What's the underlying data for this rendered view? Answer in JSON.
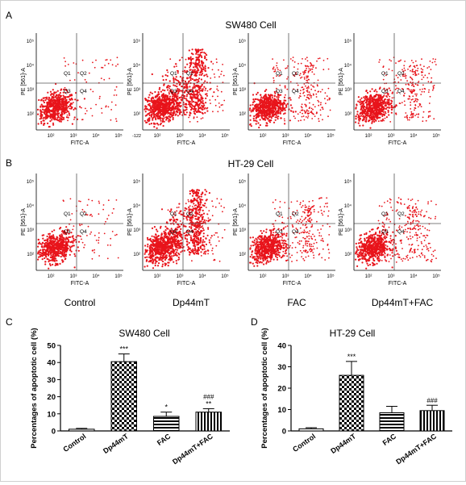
{
  "panels": {
    "A": {
      "letter": "A",
      "title": "SW480 Cell",
      "facs_style": [
        {
          "outlier": "low"
        },
        {
          "outlier": "high_q2"
        },
        {
          "outlier": "mid"
        },
        {
          "outlier": "mid"
        }
      ]
    },
    "B": {
      "letter": "B",
      "title": "HT-29 Cell",
      "facs_style": [
        {
          "outlier": "low"
        },
        {
          "outlier": "high_q2"
        },
        {
          "outlier": "mid"
        },
        {
          "outlier": "mid"
        }
      ]
    },
    "conditions": [
      "Control",
      "Dp44mT",
      "FAC",
      "Dp44mT+FAC"
    ],
    "facs_axes": {
      "x_label": "FITC-A",
      "y_label": "PE [561]-A",
      "quadrants": [
        "Q1",
        "Q2",
        "Q3",
        "Q4"
      ],
      "x_ticks": [
        "10²",
        "10³",
        "10⁴",
        "10⁵"
      ],
      "y_ticks": [
        "10²",
        "10³",
        "10⁴",
        "10⁵"
      ],
      "neg_tick": "-122"
    },
    "C": {
      "letter": "C",
      "title": "SW480 Cell"
    },
    "D": {
      "letter": "D",
      "title": "HT-29 Cell"
    },
    "colors": {
      "dots": "#e8141b",
      "axis": "#000000",
      "gate": "#555555"
    }
  },
  "chart_data": [
    {
      "type": "bar",
      "title": "SW480 Cell",
      "categories": [
        "Control",
        "Dp44mT",
        "FAC",
        "Dp44mT+FAC"
      ],
      "values": [
        1,
        40.5,
        8.5,
        11
      ],
      "errors": [
        0.5,
        4.5,
        2.5,
        2
      ],
      "annotations": [
        [
          "",
          ""
        ],
        [
          "***",
          ""
        ],
        [
          "*",
          ""
        ],
        [
          "**",
          "###"
        ]
      ],
      "ylabel": "Percentages of apoptotic cell (%)",
      "ylim": [
        0,
        50
      ],
      "yticks": [
        0,
        10,
        20,
        30,
        40,
        50
      ]
    },
    {
      "type": "bar",
      "title": "HT-29 Cell",
      "categories": [
        "Control",
        "Dp44mT",
        "FAC",
        "Dp44mT+FAC"
      ],
      "values": [
        1,
        26,
        8.5,
        9.5
      ],
      "errors": [
        0.5,
        6.5,
        3,
        2.5
      ],
      "annotations": [
        [
          "",
          ""
        ],
        [
          "***",
          ""
        ],
        [
          "",
          ""
        ],
        [
          "",
          "###"
        ]
      ],
      "ylabel": "Percentages of apoptotic cell (%)",
      "ylim": [
        0,
        40
      ],
      "yticks": [
        0,
        10,
        20,
        30,
        40
      ]
    }
  ]
}
